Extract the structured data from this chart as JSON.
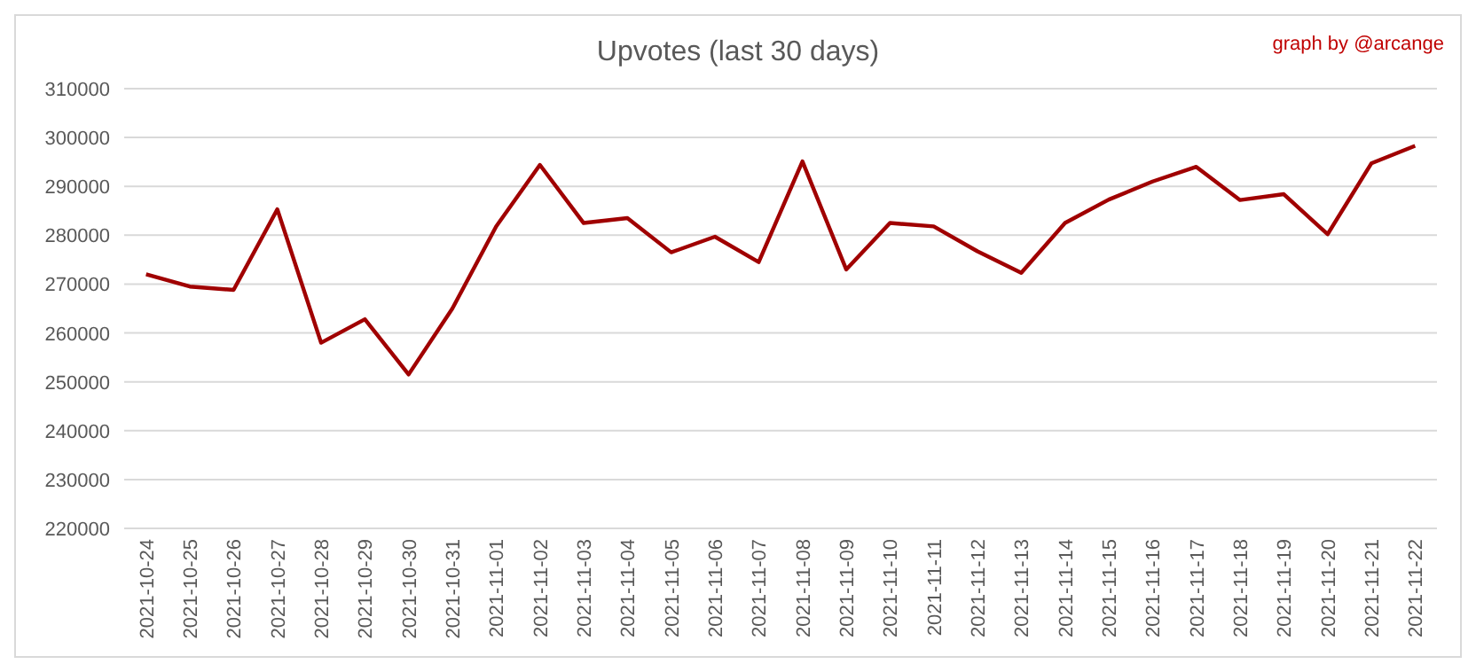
{
  "chart_data": {
    "type": "line",
    "title": "Upvotes (last 30 days)",
    "annotations": [
      "graph by @arcange"
    ],
    "categories": [
      "2021-10-24",
      "2021-10-25",
      "2021-10-26",
      "2021-10-27",
      "2021-10-28",
      "2021-10-29",
      "2021-10-30",
      "2021-10-31",
      "2021-11-01",
      "2021-11-02",
      "2021-11-03",
      "2021-11-04",
      "2021-11-05",
      "2021-11-06",
      "2021-11-07",
      "2021-11-08",
      "2021-11-09",
      "2021-11-10",
      "2021-11-11",
      "2021-11-12",
      "2021-11-13",
      "2021-11-14",
      "2021-11-15",
      "2021-11-16",
      "2021-11-17",
      "2021-11-18",
      "2021-11-19",
      "2021-11-20",
      "2021-11-21",
      "2021-11-22"
    ],
    "series": [
      {
        "color": "#a00000",
        "values": [
          272000,
          269500,
          268800,
          285300,
          258000,
          262800,
          251500,
          265000,
          281800,
          294400,
          282500,
          283500,
          276500,
          279700,
          274500,
          295100,
          273000,
          282500,
          281800,
          276700,
          272300,
          282500,
          287300,
          291000,
          294000,
          287200,
          288400,
          280200,
          294700,
          298300
        ]
      }
    ],
    "ylim": [
      220000,
      310000
    ],
    "yticks": [
      220000,
      230000,
      240000,
      250000,
      260000,
      270000,
      280000,
      290000,
      300000,
      310000
    ],
    "grid": "y",
    "line_style": "solid"
  }
}
